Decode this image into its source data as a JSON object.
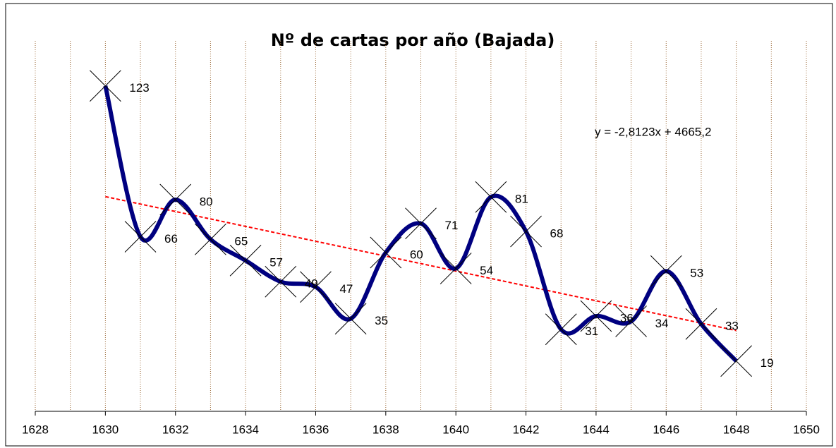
{
  "chart_data": {
    "type": "line",
    "title": "Nº de cartas por año (Bajada)",
    "x": [
      1630,
      1631,
      1632,
      1633,
      1634,
      1635,
      1636,
      1637,
      1638,
      1639,
      1640,
      1641,
      1642,
      1643,
      1644,
      1645,
      1646,
      1647,
      1648
    ],
    "series": [
      {
        "name": "Bajada",
        "color": "#000080",
        "values": [
          123,
          66,
          80,
          65,
          57,
          49,
          47,
          35,
          60,
          71,
          54,
          81,
          68,
          31,
          36,
          34,
          53,
          33,
          19
        ]
      }
    ],
    "xlim": [
      1628,
      1650
    ],
    "xticks": [
      1628,
      1630,
      1632,
      1634,
      1636,
      1638,
      1640,
      1642,
      1644,
      1646,
      1648,
      1650
    ],
    "xgrid": [
      1628,
      1629,
      1630,
      1631,
      1632,
      1633,
      1634,
      1635,
      1636,
      1637,
      1638,
      1639,
      1640,
      1641,
      1642,
      1643,
      1644,
      1645,
      1646,
      1647,
      1648,
      1649,
      1650
    ],
    "ylim": [
      0,
      140
    ],
    "grid": true,
    "grid_color": "#996633",
    "trendline": {
      "slope": -2.8123,
      "intercept": 4665.2,
      "label": "y = -2,8123x + 4665,2",
      "color": "#ff0000"
    }
  }
}
